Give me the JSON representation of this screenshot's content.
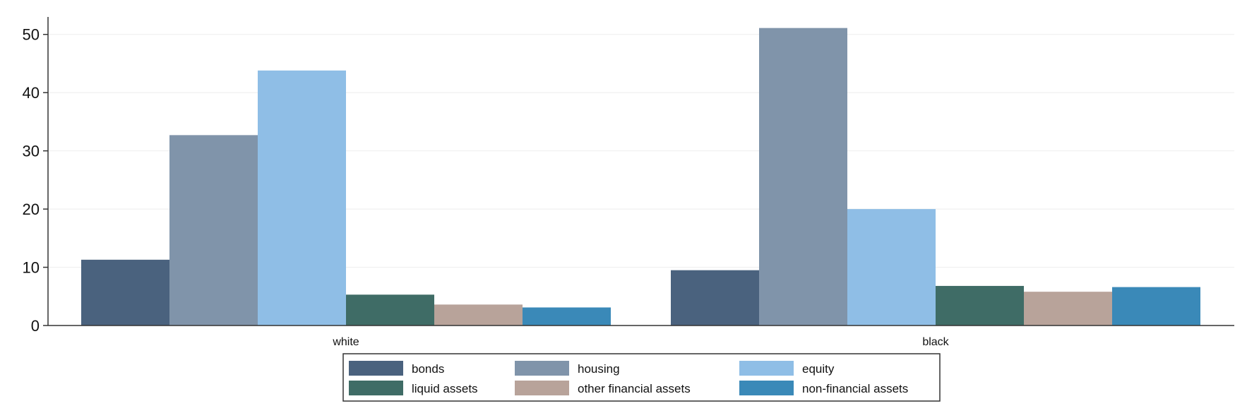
{
  "chart_data": {
    "type": "bar",
    "categories": [
      "white",
      "black"
    ],
    "series": [
      {
        "name": "bonds",
        "color": "#4a627e",
        "values": [
          11.3,
          9.5
        ]
      },
      {
        "name": "housing",
        "color": "#8094aa",
        "values": [
          32.7,
          51.1
        ]
      },
      {
        "name": "equity",
        "color": "#8fbee6",
        "values": [
          43.8,
          20.0
        ]
      },
      {
        "name": "liquid assets",
        "color": "#3f6c66",
        "values": [
          5.3,
          6.8
        ]
      },
      {
        "name": "other financial assets",
        "color": "#b8a39a",
        "values": [
          3.6,
          5.8
        ]
      },
      {
        "name": "non-financial assets",
        "color": "#3a89b8",
        "values": [
          3.1,
          6.6
        ]
      }
    ],
    "ylim": [
      0,
      53
    ],
    "yticks": [
      0,
      10,
      20,
      30,
      40,
      50
    ],
    "grid": true,
    "legend_position": "bottom-center",
    "legend_columns": 3
  }
}
